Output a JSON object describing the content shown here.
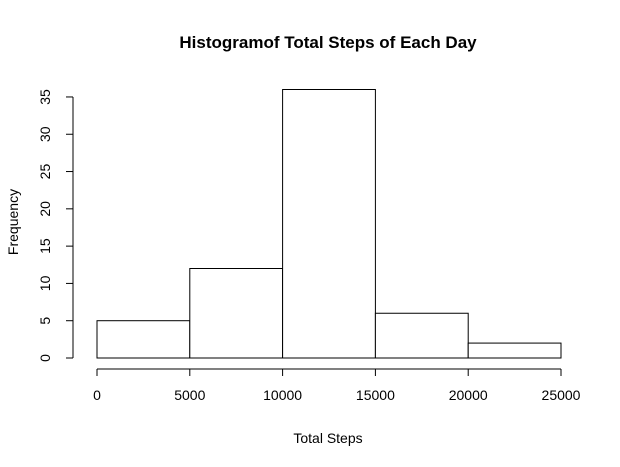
{
  "chart_data": {
    "type": "bar",
    "title": "Histogramof Total Steps of Each Day",
    "xlabel": "Total Steps",
    "ylabel": "Frequency",
    "bins": [
      {
        "from": 0,
        "to": 5000,
        "count": 5
      },
      {
        "from": 5000,
        "to": 10000,
        "count": 12
      },
      {
        "from": 10000,
        "to": 15000,
        "count": 36
      },
      {
        "from": 15000,
        "to": 20000,
        "count": 6
      },
      {
        "from": 20000,
        "to": 25000,
        "count": 2
      }
    ],
    "xlim": [
      0,
      25000
    ],
    "ylim": [
      0,
      36
    ],
    "x_ticks": [
      0,
      5000,
      10000,
      15000,
      20000,
      25000
    ],
    "y_ticks": [
      0,
      5,
      10,
      15,
      20,
      25,
      30,
      35
    ],
    "grid": false,
    "bar_fill": "#ffffff",
    "bar_stroke": "#000000"
  }
}
